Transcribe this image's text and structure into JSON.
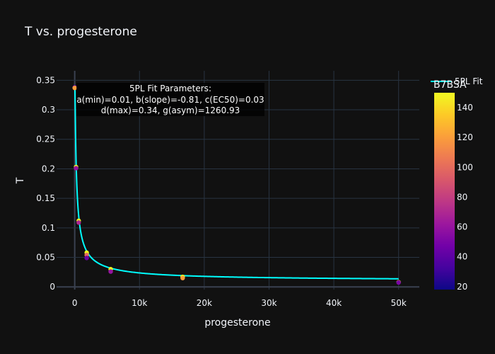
{
  "chart_data": {
    "type": "scatter",
    "title": "T vs. progesterone",
    "xlabel": "progesterone",
    "ylabel": "T",
    "xlim": [
      -2800,
      53200
    ],
    "ylim": [
      -0.0045,
      0.366
    ],
    "x_ticks": [
      0,
      10000,
      20000,
      30000,
      40000,
      50000
    ],
    "x_tick_labels": [
      "0",
      "10k",
      "20k",
      "30k",
      "40k",
      "50k"
    ],
    "y_ticks": [
      0,
      0.05,
      0.1,
      0.15,
      0.2,
      0.25,
      0.3,
      0.35
    ],
    "y_tick_labels": [
      "0",
      "0.05",
      "0.1",
      "0.15",
      "0.2",
      "0.25",
      "0.3",
      "0.35"
    ],
    "grid": true,
    "points": [
      {
        "x": 0,
        "y": 0.338,
        "c": 45
      },
      {
        "x": 0,
        "y": 0.337,
        "c": 120
      },
      {
        "x": 206,
        "y": 0.203,
        "c": 150
      },
      {
        "x": 206,
        "y": 0.201,
        "c": 60
      },
      {
        "x": 617,
        "y": 0.112,
        "c": 148
      },
      {
        "x": 617,
        "y": 0.109,
        "c": 70
      },
      {
        "x": 1852,
        "y": 0.058,
        "c": 150
      },
      {
        "x": 1852,
        "y": 0.054,
        "c": 100
      },
      {
        "x": 1852,
        "y": 0.049,
        "c": 45
      },
      {
        "x": 5556,
        "y": 0.03,
        "c": 150
      },
      {
        "x": 5556,
        "y": 0.026,
        "c": 60
      },
      {
        "x": 16667,
        "y": 0.017,
        "c": 150
      },
      {
        "x": 16667,
        "y": 0.015,
        "c": 120
      },
      {
        "x": 50000,
        "y": 0.008,
        "c": 148
      },
      {
        "x": 50000,
        "y": 0.0075,
        "c": 50
      }
    ],
    "fit": {
      "name": "5PL Fit",
      "color": "#00ffff",
      "params": {
        "a": 0.01,
        "b": -0.81,
        "c": 0.03,
        "d": 0.34,
        "g": 1260.93
      }
    },
    "annotation": [
      "5PL Fit Parameters:",
      "a(min)=0.01, b(slope)=-0.81, c(EC50)=0.03",
      "d(max)=0.34, g(asym)=1260.93"
    ],
    "colorbar": {
      "title": "B7BSA",
      "range": [
        18,
        150
      ],
      "ticks": [
        20,
        40,
        60,
        80,
        100,
        120,
        140
      ],
      "colorscale": [
        "#0d0887",
        "#46039f",
        "#7201a8",
        "#9c179e",
        "#bd3786",
        "#d8576b",
        "#ed7953",
        "#fb9f3a",
        "#fdca26",
        "#f0f921"
      ]
    },
    "legend": {
      "position": "top-right"
    }
  }
}
